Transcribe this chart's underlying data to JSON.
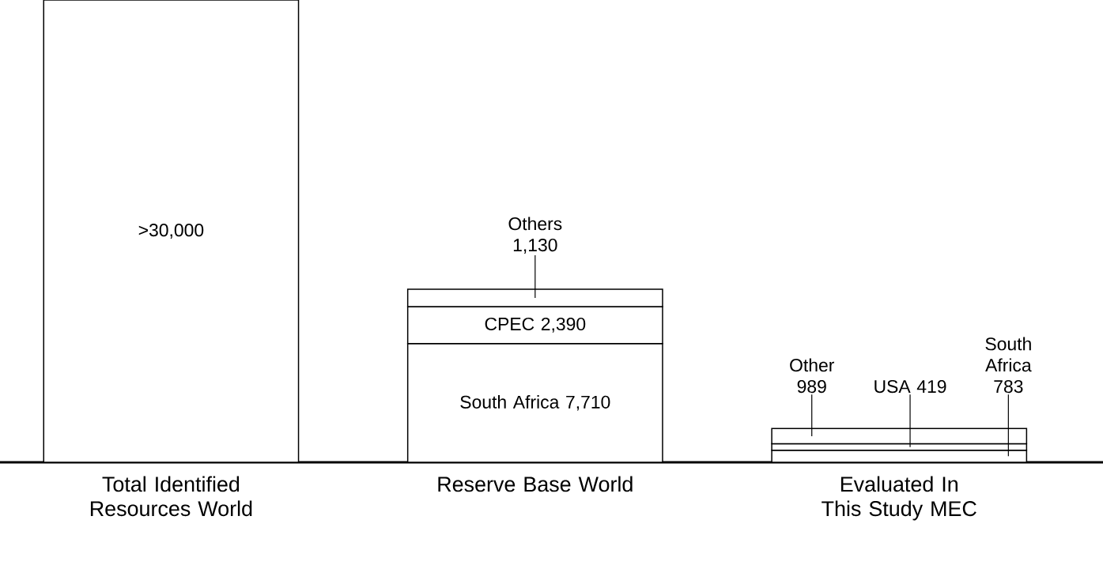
{
  "chart_data": {
    "type": "bar",
    "stacked": true,
    "categories": [
      "Total Identified Resources World",
      "Reserve Base World",
      "Evaluated In This Study MEC"
    ],
    "ylim": [
      0,
      30000
    ],
    "series": [
      {
        "color": "#ffffff",
        "values": [
          30000,
          7710,
          783
        ],
        "value_labels": [
          ">30,000",
          "South Africa 7,710",
          "South Africa 783"
        ]
      },
      {
        "color": "#ffffff",
        "values": [
          null,
          2390,
          419
        ],
        "value_labels": [
          null,
          "CPEC 2,390",
          "USA 419"
        ]
      },
      {
        "color": "#ffffff",
        "values": [
          null,
          1130,
          989
        ],
        "value_labels": [
          null,
          "Others 1,130",
          "Other 989"
        ]
      }
    ]
  }
}
